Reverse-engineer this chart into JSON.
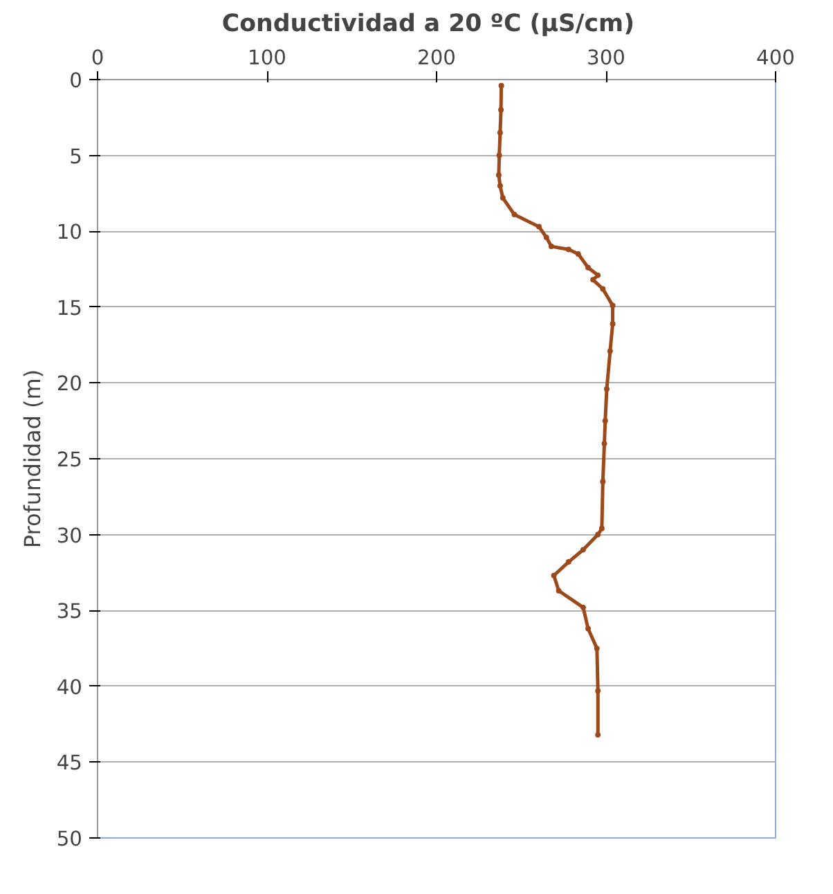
{
  "chart_data": {
    "type": "line",
    "title": "Conductividad  a  20 ºC (µS/cm)",
    "ylabel": "Profundidad (m)",
    "xlim": [
      0,
      400
    ],
    "xticks": [
      0,
      100,
      200,
      300,
      400
    ],
    "ylim": [
      50,
      0
    ],
    "yticks": [
      0,
      5,
      10,
      15,
      20,
      25,
      30,
      35,
      40,
      45,
      50
    ],
    "grid": "y",
    "marker": "circle",
    "line_style": "solid",
    "series": [
      {
        "color": "#9c4a1c",
        "x": [
          238.2,
          238,
          237.5,
          237,
          236.7,
          237.5,
          239.1,
          245.9,
          260.4,
          264.8,
          267.7,
          277.9,
          283.6,
          289.4,
          295.2,
          292.3,
          298.1,
          303.9,
          303.9,
          302.4,
          300.4,
          299.5,
          299,
          298.1,
          297.5,
          295.2,
          286.5,
          277.9,
          269.2,
          272.1,
          286.5,
          289.4,
          294.6,
          295.2,
          295.2
        ],
        "values": [
          0.4,
          2,
          3.5,
          5,
          6.3,
          7,
          7.8,
          8.9,
          9.7,
          10.4,
          11.0,
          11.2,
          11.5,
          12.4,
          12.9,
          13.2,
          13.8,
          14.9,
          16.1,
          17.9,
          20.4,
          22.5,
          24,
          26.5,
          29.6,
          30.0,
          31.0,
          31.8,
          32.7,
          33.7,
          34.8,
          36.2,
          37.5,
          40.3,
          43.2
        ]
      }
    ]
  }
}
